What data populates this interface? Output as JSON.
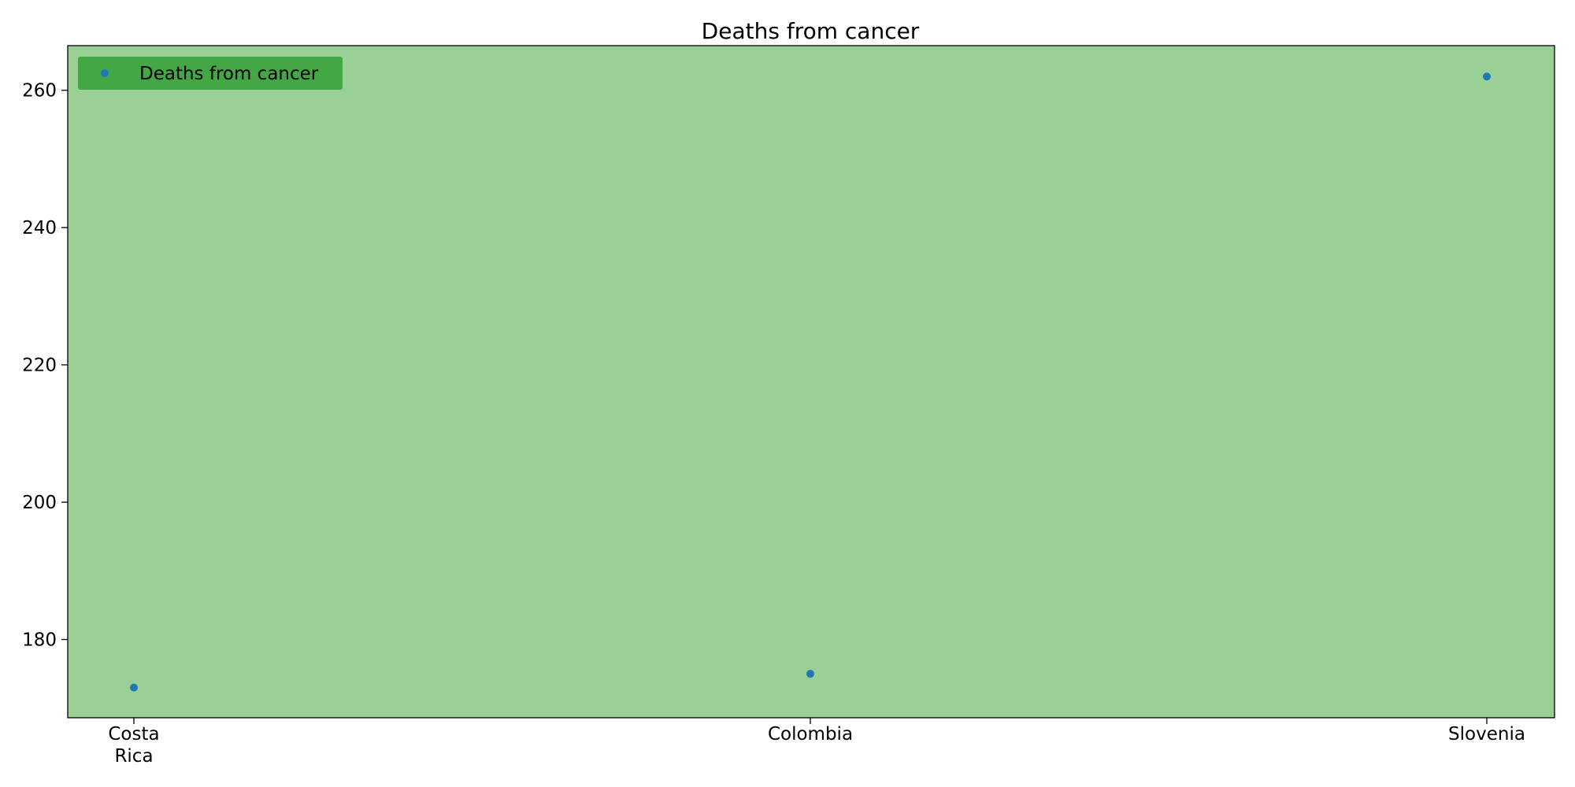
{
  "chart_data": {
    "type": "scatter",
    "title": "Deaths from cancer",
    "xlabel": "",
    "ylabel": "",
    "categories": [
      "Costa Rica",
      "Colombia",
      "Slovenia"
    ],
    "series": [
      {
        "name": "Deaths from cancer",
        "values": [
          173,
          175,
          262
        ],
        "color": "#1f77b4"
      }
    ],
    "ylim": [
      168.6,
      266.5
    ],
    "yticks": [
      180,
      200,
      220,
      240,
      260
    ],
    "grid": false,
    "legend_position": "top-left",
    "plot_background": "#98d095",
    "legend_background": "#43a843",
    "marker_color": "#1f77b4"
  }
}
